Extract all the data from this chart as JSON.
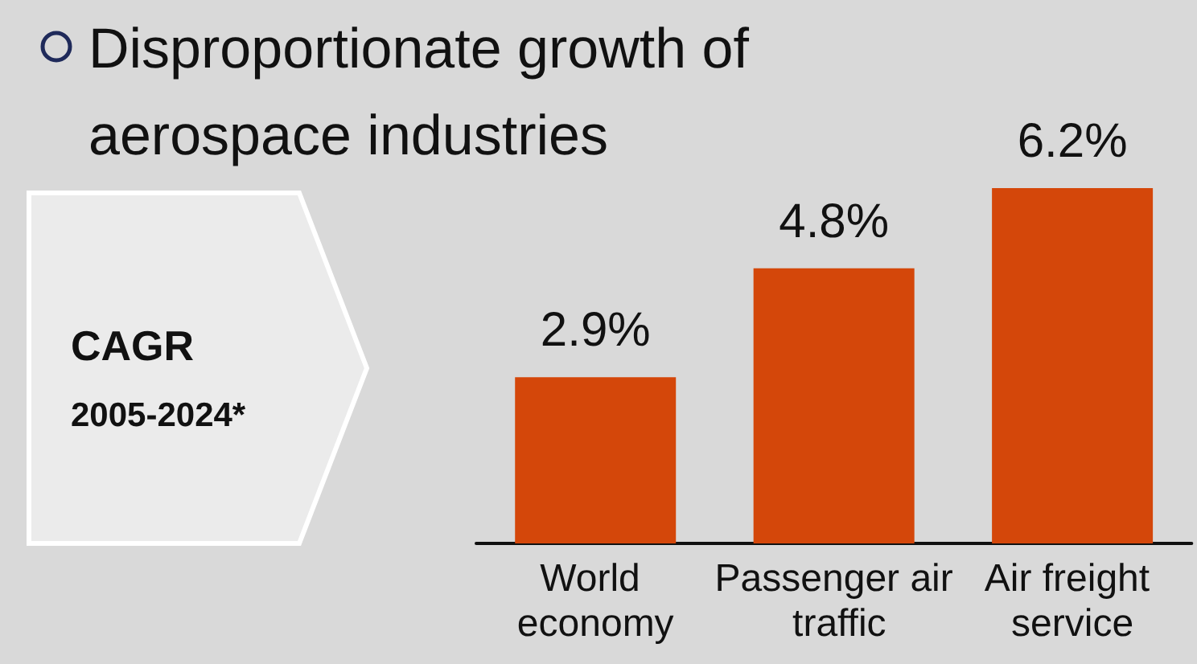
{
  "chart_data": {
    "type": "bar",
    "title": "Disproportionate growth of aerospace industries",
    "categories": [
      "World economy",
      "Passenger air traffic",
      "Air freight service"
    ],
    "values": [
      2.9,
      4.8,
      6.2
    ],
    "value_labels": [
      "2.9%",
      "4.8%",
      "6.2%"
    ],
    "color": "#d4470a",
    "annotations": [
      "CAGR",
      "2005-2024*"
    ]
  }
}
